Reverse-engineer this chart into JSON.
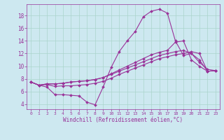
{
  "title": "",
  "xlabel": "Windchill (Refroidissement éolien,°C)",
  "ylabel": "",
  "bg_color": "#cde8f0",
  "line_color": "#993399",
  "grid_color": "#aad4cc",
  "x_ticks": [
    0,
    1,
    2,
    3,
    4,
    5,
    6,
    7,
    8,
    9,
    10,
    11,
    12,
    13,
    14,
    15,
    16,
    17,
    18,
    19,
    20,
    21,
    22,
    23
  ],
  "y_ticks": [
    4,
    6,
    8,
    10,
    12,
    14,
    16,
    18
  ],
  "xlim": [
    -0.5,
    23.5
  ],
  "ylim": [
    3.2,
    19.8
  ],
  "series": [
    [
      7.5,
      7.0,
      6.7,
      5.5,
      5.5,
      5.4,
      5.3,
      4.3,
      3.9,
      6.7,
      9.8,
      12.3,
      14.0,
      15.5,
      17.8,
      18.7,
      19.0,
      18.4,
      14.0,
      11.7,
      12.0,
      10.6,
      9.5,
      9.3
    ],
    [
      7.5,
      7.0,
      7.1,
      6.8,
      6.9,
      6.9,
      7.0,
      7.1,
      7.3,
      7.6,
      8.1,
      8.7,
      9.2,
      9.7,
      10.2,
      10.7,
      11.2,
      11.5,
      11.8,
      12.0,
      12.3,
      12.0,
      9.2,
      9.3
    ],
    [
      7.5,
      7.0,
      7.2,
      7.2,
      7.3,
      7.5,
      7.6,
      7.7,
      7.9,
      8.2,
      8.7,
      9.2,
      9.7,
      10.2,
      10.7,
      11.2,
      11.7,
      12.0,
      12.3,
      12.5,
      12.0,
      11.0,
      9.2,
      9.3
    ],
    [
      7.5,
      7.0,
      7.2,
      7.2,
      7.3,
      7.5,
      7.6,
      7.7,
      7.9,
      8.2,
      8.8,
      9.4,
      10.0,
      10.6,
      11.2,
      11.8,
      12.2,
      12.5,
      13.8,
      14.0,
      11.0,
      10.0,
      9.2,
      9.3
    ]
  ],
  "figsize": [
    3.2,
    2.0
  ],
  "dpi": 100
}
